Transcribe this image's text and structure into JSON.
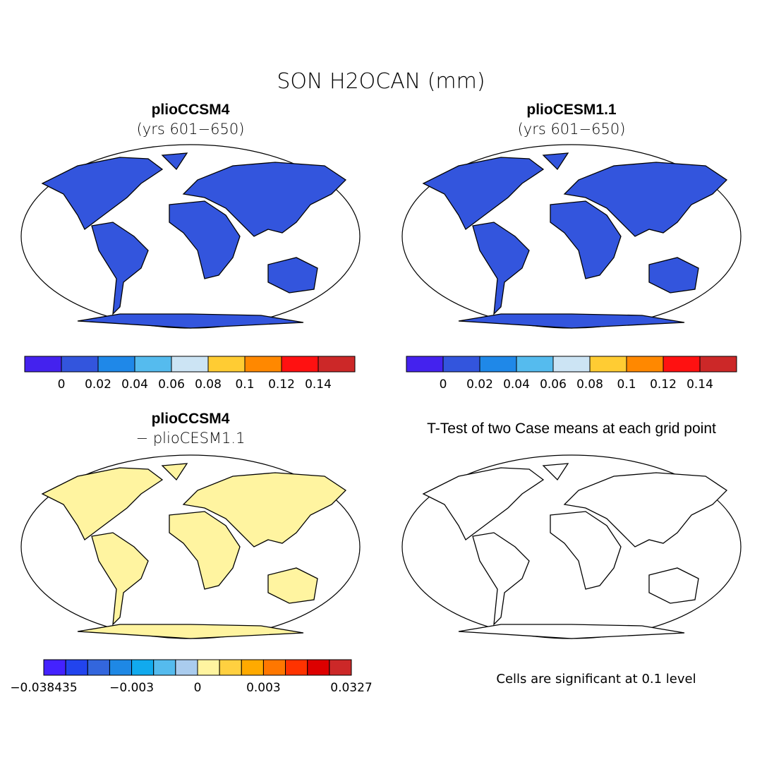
{
  "title": "SON H2OCAN (mm)",
  "panels": [
    {
      "title": "plioCCSM4",
      "subtitle": "(yrs 601−650)"
    },
    {
      "title": "plioCESM1.1",
      "subtitle": "(yrs 601−650)"
    },
    {
      "title": "plioCCSM4",
      "subtitle": "− plioCESM1.1"
    },
    {
      "title": "T-Test of two Case means at each grid point"
    }
  ],
  "colorbars": [
    {
      "colors": [
        "#4422ee",
        "#3355dd",
        "#1f88e8",
        "#55bbee",
        "#cce4f4",
        "#ffcc33",
        "#ff8800",
        "#ff1111",
        "#cc2828"
      ],
      "ticks": [
        null,
        0,
        0.02,
        0.04,
        0.06,
        0.08,
        0.1,
        0.12,
        0.14,
        null
      ]
    },
    {
      "colors": [
        "#4422ee",
        "#3355dd",
        "#1f88e8",
        "#55bbee",
        "#cce4f4",
        "#ffcc33",
        "#ff8800",
        "#ff1111",
        "#cc2828"
      ],
      "ticks": [
        null,
        0,
        0.02,
        0.04,
        0.06,
        0.08,
        0.1,
        0.12,
        0.14,
        null
      ]
    },
    {
      "colors": [
        "#4422ff",
        "#2244ee",
        "#3366dd",
        "#1e88e5",
        "#11aaee",
        "#55bbee",
        "#aaccee",
        "#fff4a0",
        "#ffd040",
        "#ffaa00",
        "#ff7700",
        "#ff3300",
        "#dd0000",
        "#cc2828"
      ],
      "ticks": [
        {
          "value": -0.038435,
          "label": "−0.038435"
        },
        null,
        null,
        null,
        {
          "value": -0.003,
          "label": "−0.003"
        },
        null,
        null,
        0,
        null,
        null,
        0.003,
        null,
        null,
        null,
        0.0327
      ]
    }
  ],
  "note": "Cells are significant at 0.1 level"
}
